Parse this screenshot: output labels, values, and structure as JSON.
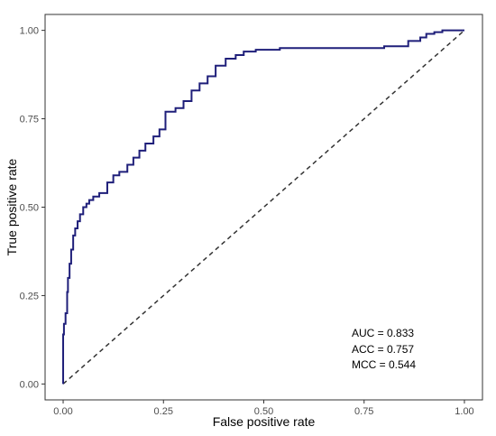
{
  "chart_data": {
    "type": "line",
    "xlabel": "False positive rate",
    "ylabel": "True positive rate",
    "xlim": [
      0,
      1
    ],
    "ylim": [
      0,
      1
    ],
    "x_ticks": [
      "0.00",
      "0.25",
      "0.50",
      "0.75",
      "1.00"
    ],
    "y_ticks": [
      "0.00",
      "0.25",
      "0.50",
      "0.75",
      "1.00"
    ],
    "grid": false,
    "colors": {
      "roc": "#1f1f7a",
      "reference": "#333333",
      "axis": "#333333"
    },
    "series": [
      {
        "style": "step",
        "x": [
          0.0,
          0.0,
          0.002,
          0.002,
          0.006,
          0.006,
          0.01,
          0.01,
          0.012,
          0.012,
          0.016,
          0.016,
          0.02,
          0.02,
          0.025,
          0.025,
          0.03,
          0.03,
          0.036,
          0.036,
          0.042,
          0.042,
          0.05,
          0.05,
          0.058,
          0.058,
          0.065,
          0.065,
          0.075,
          0.075,
          0.09,
          0.09,
          0.11,
          0.11,
          0.125,
          0.125,
          0.14,
          0.14,
          0.16,
          0.16,
          0.175,
          0.175,
          0.19,
          0.19,
          0.205,
          0.205,
          0.225,
          0.225,
          0.24,
          0.24,
          0.255,
          0.255,
          0.28,
          0.28,
          0.3,
          0.3,
          0.32,
          0.32,
          0.34,
          0.34,
          0.36,
          0.36,
          0.38,
          0.38,
          0.405,
          0.405,
          0.43,
          0.43,
          0.45,
          0.45,
          0.48,
          0.48,
          0.54,
          0.54,
          0.8,
          0.8,
          0.86,
          0.86,
          0.89,
          0.89,
          0.905,
          0.905,
          0.925,
          0.925,
          0.945,
          0.945,
          1.0
        ],
        "y": [
          0.0,
          0.14,
          0.14,
          0.17,
          0.17,
          0.2,
          0.2,
          0.26,
          0.26,
          0.3,
          0.3,
          0.34,
          0.34,
          0.38,
          0.38,
          0.42,
          0.42,
          0.44,
          0.44,
          0.46,
          0.46,
          0.48,
          0.48,
          0.5,
          0.5,
          0.51,
          0.51,
          0.52,
          0.52,
          0.53,
          0.53,
          0.54,
          0.54,
          0.57,
          0.57,
          0.59,
          0.59,
          0.6,
          0.6,
          0.62,
          0.62,
          0.64,
          0.64,
          0.66,
          0.66,
          0.68,
          0.68,
          0.7,
          0.7,
          0.72,
          0.72,
          0.77,
          0.77,
          0.78,
          0.78,
          0.8,
          0.8,
          0.83,
          0.83,
          0.85,
          0.85,
          0.87,
          0.87,
          0.9,
          0.9,
          0.92,
          0.92,
          0.93,
          0.93,
          0.94,
          0.94,
          0.945,
          0.945,
          0.95,
          0.95,
          0.955,
          0.955,
          0.97,
          0.97,
          0.98,
          0.98,
          0.99,
          0.99,
          0.995,
          0.995,
          1.0,
          1.0
        ]
      },
      {
        "style": "dashed",
        "x": [
          0,
          1
        ],
        "y": [
          0,
          1
        ]
      }
    ],
    "annotations": [
      "AUC = 0.833",
      "ACC = 0.757",
      "MCC = 0.544"
    ]
  }
}
